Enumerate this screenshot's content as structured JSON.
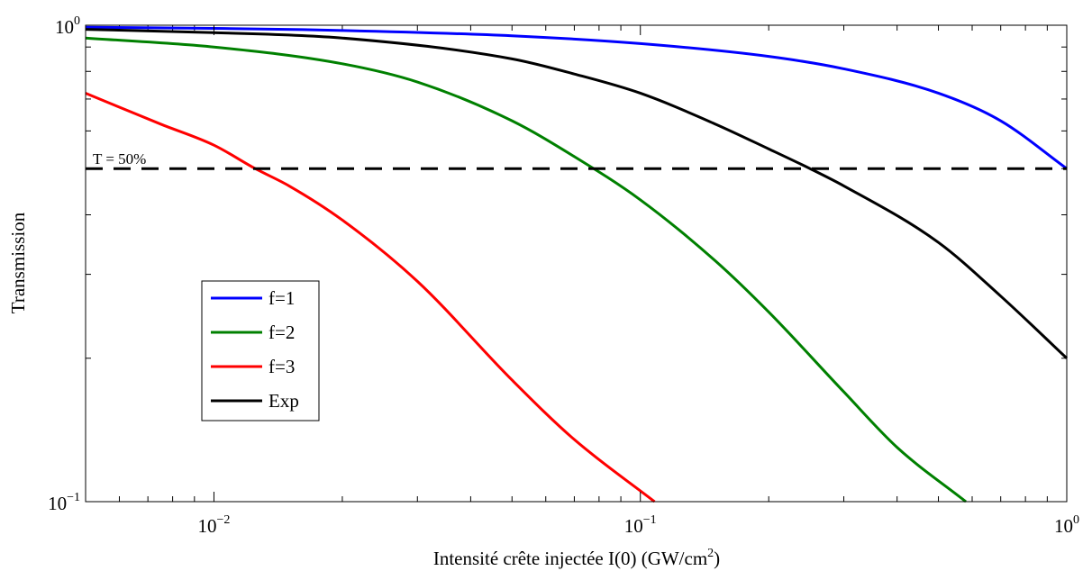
{
  "chart_data": {
    "type": "line",
    "xscale": "log",
    "yscale": "log",
    "xlim": [
      0.005,
      1
    ],
    "ylim": [
      0.1,
      1
    ],
    "xlabel": "Intensité crête injectée I(0) (GW/cm",
    "xlabel_sup": "2",
    "xlabel_end": ")",
    "ylabel": "Transmission",
    "x_ticks": [
      {
        "value": 0.01,
        "base": "10",
        "exp": "−2"
      },
      {
        "value": 0.1,
        "base": "10",
        "exp": "−1"
      },
      {
        "value": 1,
        "base": "10",
        "exp": "0"
      }
    ],
    "y_ticks": [
      {
        "value": 0.1,
        "base": "10",
        "exp": "−1"
      },
      {
        "value": 1,
        "base": "10",
        "exp": "0"
      }
    ],
    "legend_position": "center-left",
    "series": [
      {
        "name": "f=1",
        "color": "#0000ff",
        "x": [
          0.005,
          0.01,
          0.02,
          0.05,
          0.1,
          0.2,
          0.3,
          0.5,
          0.7,
          1.0
        ],
        "y": [
          0.99,
          0.985,
          0.975,
          0.95,
          0.915,
          0.86,
          0.81,
          0.72,
          0.63,
          0.5
        ]
      },
      {
        "name": "f=2",
        "color": "#008000",
        "x": [
          0.005,
          0.01,
          0.02,
          0.03,
          0.05,
          0.07,
          0.1,
          0.15,
          0.2,
          0.3,
          0.4,
          0.58
        ],
        "y": [
          0.94,
          0.9,
          0.83,
          0.76,
          0.63,
          0.53,
          0.43,
          0.32,
          0.25,
          0.17,
          0.13,
          0.1
        ]
      },
      {
        "name": "f=3",
        "color": "#ff0000",
        "x": [
          0.005,
          0.0075,
          0.01,
          0.0125,
          0.015,
          0.02,
          0.03,
          0.05,
          0.07,
          0.108
        ],
        "y": [
          0.72,
          0.62,
          0.56,
          0.5,
          0.46,
          0.39,
          0.29,
          0.18,
          0.135,
          0.1
        ]
      },
      {
        "name": "Exp",
        "color": "#000000",
        "x": [
          0.005,
          0.01,
          0.02,
          0.05,
          0.07,
          0.1,
          0.15,
          0.2,
          0.25,
          0.3,
          0.5,
          0.7,
          1.0
        ],
        "y": [
          0.98,
          0.965,
          0.94,
          0.85,
          0.79,
          0.72,
          0.62,
          0.55,
          0.5,
          0.46,
          0.35,
          0.27,
          0.2
        ]
      }
    ],
    "reference_line": {
      "y": 0.5,
      "label": "T = 50%",
      "color": "#000000",
      "style": "dashed"
    }
  }
}
